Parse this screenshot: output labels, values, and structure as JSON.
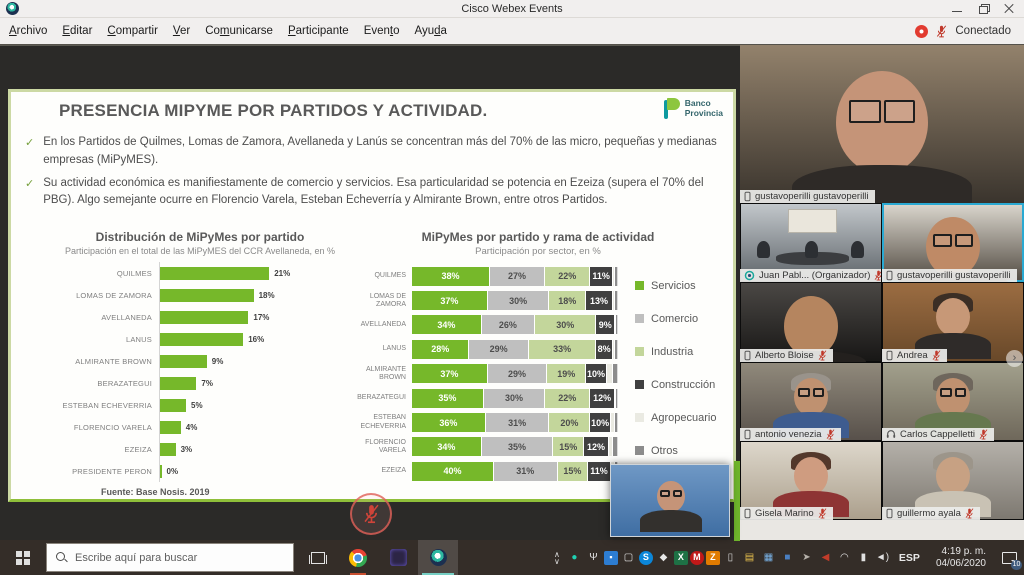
{
  "window": {
    "title": "Cisco Webex Events",
    "connected_label": "Conectado"
  },
  "menu": {
    "items": [
      {
        "label": "Archivo",
        "u": 0
      },
      {
        "label": "Editar",
        "u": 0
      },
      {
        "label": "Compartir",
        "u": 0
      },
      {
        "label": "Ver",
        "u": 0
      },
      {
        "label": "Comunicarse",
        "u": 2
      },
      {
        "label": "Participante",
        "u": 0
      },
      {
        "label": "Evento",
        "u": 4
      },
      {
        "label": "Ayuda",
        "u": 3
      }
    ]
  },
  "slide": {
    "title": "PRESENCIA MIPYME POR PARTIDOS Y ACTIVIDAD.",
    "bullet_marker": "✓",
    "bullets": [
      "En los Partidos de Quilmes, Lomas de Zamora, Avellaneda y Lanús se concentran más del 70% de las micro, pequeñas y medianas empresas (MiPyMES).",
      "Su actividad económica es manifiestamente de comercio y servicios. Esa particularidad se potencia en Ezeiza (supera el 70% del PBG). Algo semejante ocurre en Florencio Varela, Esteban Echeverría y Almirante Brown, entre otros Partidos."
    ],
    "logo": {
      "line1": "Banco",
      "line2": "Provincia"
    }
  },
  "chart_data": [
    {
      "type": "bar",
      "orientation": "horizontal",
      "title": "Distribución de MiPyMes por partido",
      "subtitle": "Participación en el total de las MiPyMES del CCR Avellaneda, en %",
      "categories": [
        "QUILMES",
        "LOMAS DE ZAMORA",
        "AVELLANEDA",
        "LANUS",
        "ALMIRANTE BROWN",
        "BERAZATEGUI",
        "ESTEBAN ECHEVERRIA",
        "FLORENCIO VARELA",
        "EZEIZA",
        "PRESIDENTE PERON"
      ],
      "values": [
        21,
        18,
        17,
        16,
        9,
        7,
        5,
        4,
        3,
        0
      ],
      "value_suffix": "%",
      "bar_color": "#76b82a",
      "xlim": [
        0,
        23
      ],
      "source": "Fuente: Base Nosis. 2019"
    },
    {
      "type": "stacked_bar",
      "orientation": "horizontal",
      "title": "MiPyMes por partido y rama de actividad",
      "subtitle": "Participación por sector, en %",
      "categories": [
        "QUILMES",
        "LOMAS DE ZAMORA",
        "AVELLANEDA",
        "LANUS",
        "ALMIRANTE BROWN",
        "BERAZATEGUI",
        "ESTEBAN ECHEVERRIA",
        "FLORENCIO VARELA",
        "EZEIZA"
      ],
      "series": [
        {
          "name": "Servicios",
          "color": "#76b82a",
          "text": "#ffffff",
          "labeled": true,
          "values": [
            38,
            37,
            34,
            28,
            37,
            35,
            36,
            34,
            40
          ]
        },
        {
          "name": "Comercio",
          "color": "#bfbfbf",
          "text": "#4d4d4d",
          "labeled": true,
          "values": [
            27,
            30,
            26,
            29,
            29,
            30,
            31,
            35,
            31
          ]
        },
        {
          "name": "Industria",
          "color": "#c3d69b",
          "text": "#4d4d4d",
          "labeled": true,
          "values": [
            22,
            18,
            30,
            33,
            19,
            22,
            20,
            15,
            15
          ]
        },
        {
          "name": "Construcción",
          "color": "#404040",
          "text": "#ffffff",
          "labeled": true,
          "values": [
            11,
            13,
            9,
            8,
            10,
            12,
            10,
            12,
            11
          ]
        },
        {
          "name": "Agropecuario",
          "color": "#eaeae2",
          "text": "#4d4d4d",
          "labeled": false,
          "values": [
            1,
            1,
            0.5,
            1,
            3,
            0.5,
            2,
            2,
            2
          ]
        },
        {
          "name": "Otros",
          "color": "#8c8c8c",
          "text": "#ffffff",
          "labeled": false,
          "values": [
            1,
            1,
            0.5,
            1,
            2,
            0.5,
            1,
            2,
            1
          ]
        }
      ],
      "legend_position": "right",
      "value_suffix": "%"
    }
  ],
  "participants": {
    "featured": {
      "name": "gustavoperilli gustavoperilli",
      "device": "phone",
      "muted": false,
      "scene": {
        "bg1": "#93826c",
        "bg2": "#3a342d",
        "skin": "#c59478",
        "shirt": "#2e2a27",
        "glasses": true,
        "closeup": true
      }
    },
    "grid": [
      {
        "name": "Juan Pabl... (Organizador)",
        "device": "webex",
        "muted": true,
        "scene": {
          "room": true,
          "bg1": "#c3c8cc",
          "bg2": "#5d6368"
        }
      },
      {
        "name": "gustavoperilli gustavoperilli",
        "device": "phone",
        "muted": false,
        "active": true,
        "scene": {
          "bg1": "#dcd8cf",
          "bg2": "#514a41",
          "skin": "#bf8a66",
          "shirt": "#443d37",
          "glasses": true,
          "closeup": true
        }
      },
      {
        "name": "Alberto Bloise",
        "device": "phone",
        "muted": true,
        "scene": {
          "bg1": "#4b4845",
          "bg2": "#171615",
          "skin": "#b5855f",
          "shirt": "#23201e",
          "closeup": true
        }
      },
      {
        "name": "Andrea",
        "device": "phone",
        "muted": true,
        "scene": {
          "bg1": "#9c6d42",
          "bg2": "#684829",
          "skin": "#c79877",
          "shirt": "#2f2b29",
          "hair": "#3b2e25"
        }
      },
      {
        "name": "antonio venezia",
        "device": "phone",
        "muted": true,
        "scene": {
          "bg1": "#918a7c",
          "bg2": "#57504a",
          "skin": "#bf9170",
          "shirt": "#3e5c8f",
          "hair": "#99938b",
          "glasses": true
        }
      },
      {
        "name": "Carlos Cappelletti",
        "device": "headset",
        "muted": true,
        "scene": {
          "bg1": "#a3a18d",
          "bg2": "#6e675a",
          "skin": "#bf9170",
          "shirt": "#66784f",
          "hair": "#6e665c",
          "glasses": true
        }
      },
      {
        "name": "Gisela Marino",
        "device": "phone",
        "muted": true,
        "scene": {
          "bg1": "#ded8cc",
          "bg2": "#ab9f8c",
          "skin": "#cf9c80",
          "shirt": "#8e3434",
          "hair": "#53382b"
        }
      },
      {
        "name": "guillermo ayala",
        "device": "phone",
        "muted": true,
        "scene": {
          "bg1": "#b5b1aa",
          "bg2": "#7d7870",
          "skin": "#c7a183",
          "shirt": "#c9c2b4",
          "hair": "#9c958a"
        }
      }
    ]
  },
  "pip": {
    "scene": {
      "bg1": "#6f98c5",
      "bg2": "#3f6ea3",
      "skin": "#c59478",
      "shirt": "#33302d",
      "glasses": true
    }
  },
  "panel": {
    "chevron": "›"
  },
  "taskbar": {
    "search_placeholder": "Escribe aquí para buscar",
    "tray_expand_up": "∧",
    "tray_expand_down": "∨",
    "language": "ESP",
    "time": "4:19 p. m.",
    "date": "04/06/2020",
    "notification_count": "10",
    "tray_icons": [
      {
        "name": "webex-tray-icon",
        "glyph": "●",
        "color": "#1fd0b2"
      },
      {
        "name": "mic-tray-icon",
        "glyph": "Ψ",
        "color": "#e0e0e0"
      },
      {
        "name": "chat-app-icon",
        "glyph": "▪",
        "color": "#ffffff",
        "bg": "#2d7dd2"
      },
      {
        "name": "display-settings-icon",
        "glyph": "▢",
        "color": "#e0e0e0"
      },
      {
        "name": "skype-icon",
        "glyph": "S",
        "color": "#ffffff",
        "bg": "#0b86d8",
        "round": true
      },
      {
        "name": "antivirus-shield-icon",
        "glyph": "◆",
        "color": "#e8e8e8"
      },
      {
        "name": "excel-icon",
        "glyph": "X",
        "color": "#ffffff",
        "bg": "#1e7145"
      },
      {
        "name": "mcafee-icon",
        "glyph": "M",
        "color": "#ffffff",
        "bg": "#c01818",
        "round": true
      },
      {
        "name": "updater-icon",
        "glyph": "Z",
        "color": "#ffffff",
        "bg": "#e07b00"
      },
      {
        "name": "usb-device-icon",
        "glyph": "▯",
        "color": "#d8d8d8"
      },
      {
        "name": "folder-icon",
        "glyph": "▤",
        "color": "#e8c14d"
      },
      {
        "name": "photos-app-icon",
        "glyph": "▦",
        "color": "#7ab3e8"
      },
      {
        "name": "app-window-icon",
        "glyph": "■",
        "color": "#4a7fc1"
      },
      {
        "name": "send-app-icon",
        "glyph": "➤",
        "color": "#b5b0a9"
      },
      {
        "name": "media-play-icon",
        "glyph": "◀",
        "color": "#c23c2a"
      },
      {
        "name": "wifi-icon",
        "glyph": "◠",
        "color": "#e0e0e0"
      },
      {
        "name": "battery-icon",
        "glyph": "▮",
        "color": "#e0e0e0"
      },
      {
        "name": "volume-icon",
        "glyph": "◄)",
        "color": "#e0e0e0"
      }
    ]
  }
}
